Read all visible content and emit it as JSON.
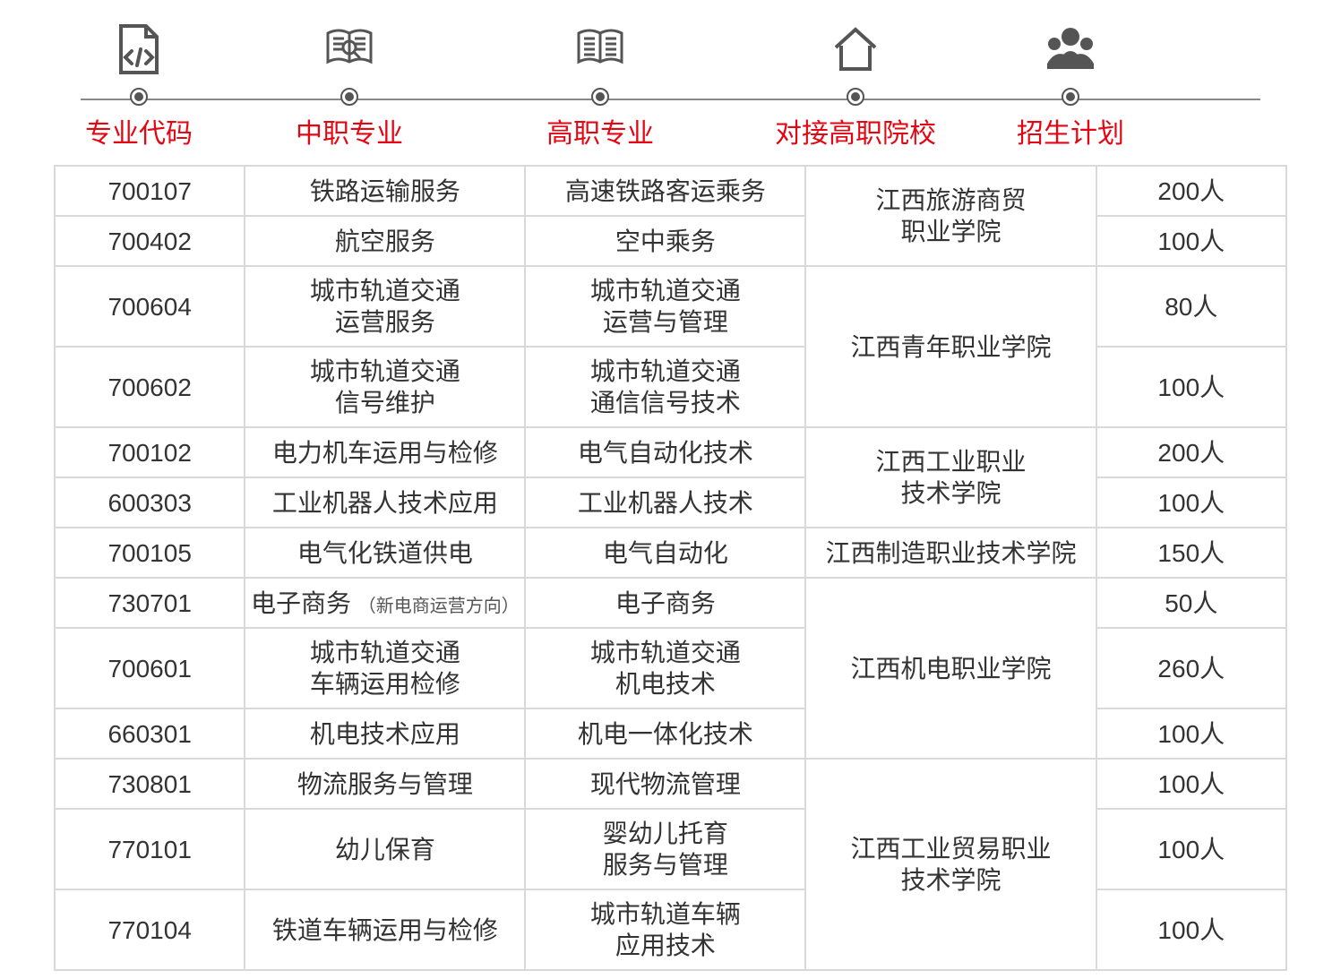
{
  "header": {
    "labels": [
      "专业代码",
      "中职专业",
      "高职专业",
      "对接高职院校",
      "招生计划"
    ]
  },
  "colors": {
    "header_text": "#e30613",
    "border": "#d9d9d9",
    "icon": "#555555",
    "text": "#333333"
  },
  "rows": [
    {
      "code": "700107",
      "zz": "铁路运输服务",
      "gz": "高速铁路客运乘务",
      "plan": "200人"
    },
    {
      "code": "700402",
      "zz": "航空服务",
      "gz": "空中乘务",
      "plan": "100人"
    },
    {
      "code": "700604",
      "zz": "城市轨道交通<br>运营服务",
      "gz": "城市轨道交通<br>运营与管理",
      "plan": "80人"
    },
    {
      "code": "700602",
      "zz": "城市轨道交通<br>信号维护",
      "gz": "城市轨道交通<br>通信信号技术",
      "plan": "100人"
    },
    {
      "code": "700102",
      "zz": "电力机车运用与检修",
      "gz": "电气自动化技术",
      "plan": "200人"
    },
    {
      "code": "600303",
      "zz": "工业机器人技术应用",
      "gz": "工业机器人技术",
      "plan": "100人"
    },
    {
      "code": "700105",
      "zz": "电气化铁道供电",
      "gz": "电气自动化",
      "plan": "150人"
    },
    {
      "code": "730701",
      "zz": "电子商务 <span class=\"sub\">（新电商运营方向）</span>",
      "gz": "电子商务",
      "plan": "50人"
    },
    {
      "code": "700601",
      "zz": "城市轨道交通<br>车辆运用检修",
      "gz": "城市轨道交通<br>机电技术",
      "plan": "260人"
    },
    {
      "code": "660301",
      "zz": "机电技术应用",
      "gz": "机电一体化技术",
      "plan": "100人"
    },
    {
      "code": "730801",
      "zz": "物流服务与管理",
      "gz": "现代物流管理",
      "plan": "100人"
    },
    {
      "code": "770101",
      "zz": "幼儿保育",
      "gz": "婴幼儿托育<br>服务与管理",
      "plan": "100人"
    },
    {
      "code": "770104",
      "zz": "铁道车辆运用与检修",
      "gz": "城市轨道车辆<br>应用技术",
      "plan": "100人"
    }
  ],
  "school_groups": [
    {
      "start": 0,
      "span": 2,
      "name": "江西旅游商贸<br>职业学院"
    },
    {
      "start": 2,
      "span": 2,
      "name": "江西青年职业学院"
    },
    {
      "start": 4,
      "span": 2,
      "name": "江西工业职业<br>技术学院"
    },
    {
      "start": 6,
      "span": 1,
      "name": "江西制造职业技术学院"
    },
    {
      "start": 7,
      "span": 3,
      "name": "江西机电职业学院"
    },
    {
      "start": 10,
      "span": 3,
      "name": "江西工业贸易职业<br>技术学院"
    }
  ],
  "row_tall": [
    false,
    false,
    true,
    true,
    false,
    false,
    false,
    false,
    true,
    false,
    false,
    true,
    true
  ]
}
